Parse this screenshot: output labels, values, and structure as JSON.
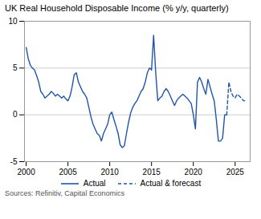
{
  "chart_data": {
    "type": "line",
    "title": "UK Real Household Disposable Income (% y/y, quarterly)",
    "source": "Sources: Refinitiv, Capital Economics",
    "xlim": [
      1999.8,
      2026.8
    ],
    "xticks": [
      2000,
      2005,
      2010,
      2015,
      2020,
      2025
    ],
    "ylim": [
      -5,
      10
    ],
    "yticks": [
      -5,
      0,
      5,
      10
    ],
    "grid": "y",
    "legend": "bottom",
    "series": [
      {
        "name": "Actual",
        "color": "#2255aa",
        "line_style": "solid",
        "x": [
          2000.0,
          2000.25,
          2000.5,
          2000.75,
          2001.0,
          2001.25,
          2001.5,
          2001.75,
          2002.0,
          2002.25,
          2002.5,
          2002.75,
          2003.0,
          2003.25,
          2003.5,
          2003.75,
          2004.0,
          2004.25,
          2004.5,
          2004.75,
          2005.0,
          2005.25,
          2005.5,
          2005.75,
          2006.0,
          2006.25,
          2006.5,
          2006.75,
          2007.0,
          2007.25,
          2007.5,
          2007.75,
          2008.0,
          2008.25,
          2008.5,
          2008.75,
          2009.0,
          2009.25,
          2009.5,
          2009.75,
          2010.0,
          2010.25,
          2010.5,
          2010.75,
          2011.0,
          2011.25,
          2011.5,
          2011.75,
          2012.0,
          2012.25,
          2012.5,
          2012.75,
          2013.0,
          2013.25,
          2013.5,
          2013.75,
          2014.0,
          2014.25,
          2014.5,
          2014.75,
          2015.0,
          2015.25,
          2015.5,
          2015.75,
          2016.0,
          2016.25,
          2016.5,
          2016.75,
          2017.0,
          2017.25,
          2017.5,
          2017.75,
          2018.0,
          2018.25,
          2018.5,
          2018.75,
          2019.0,
          2019.25,
          2019.5,
          2019.75,
          2020.0,
          2020.25,
          2020.5,
          2020.75,
          2021.0,
          2021.25,
          2021.5,
          2021.75,
          2022.0,
          2022.25,
          2022.5,
          2022.75,
          2023.0,
          2023.25,
          2023.5,
          2023.75,
          2024.0
        ],
        "values": [
          7.2,
          6.0,
          5.3,
          5.0,
          4.8,
          4.2,
          3.5,
          2.5,
          2.2,
          1.8,
          2.0,
          2.2,
          2.5,
          2.3,
          2.0,
          2.2,
          2.0,
          1.8,
          2.0,
          1.7,
          1.5,
          2.0,
          3.0,
          4.3,
          4.5,
          3.5,
          3.0,
          2.5,
          2.2,
          1.8,
          0.8,
          -0.2,
          -1.0,
          -1.5,
          -2.0,
          -2.2,
          -2.8,
          -2.0,
          -1.5,
          -1.0,
          0.0,
          0.3,
          -0.5,
          -1.2,
          -2.0,
          -3.2,
          -3.5,
          -3.3,
          -2.0,
          -0.8,
          0.2,
          0.8,
          1.2,
          1.5,
          2.0,
          2.5,
          2.8,
          3.5,
          4.5,
          5.0,
          4.8,
          8.5,
          4.5,
          1.5,
          1.8,
          2.0,
          2.5,
          2.8,
          2.5,
          2.0,
          1.5,
          1.0,
          1.5,
          1.8,
          2.0,
          2.2,
          2.0,
          1.8,
          1.5,
          1.2,
          0.0,
          -1.5,
          3.5,
          4.0,
          3.5,
          2.8,
          2.2,
          3.8,
          3.0,
          2.2,
          1.5,
          -0.5,
          -2.8,
          -2.8,
          -2.5,
          0.0,
          0.0
        ]
      },
      {
        "name": "Actual & forecast",
        "color": "#2255aa",
        "line_style": "dashed",
        "x": [
          2024.0,
          2024.25,
          2024.5,
          2024.75,
          2025.0,
          2025.25,
          2025.5,
          2025.75,
          2026.0,
          2026.25
        ],
        "values": [
          0.0,
          3.5,
          2.5,
          2.0,
          1.8,
          2.2,
          2.0,
          1.8,
          1.5,
          1.5
        ]
      }
    ]
  }
}
